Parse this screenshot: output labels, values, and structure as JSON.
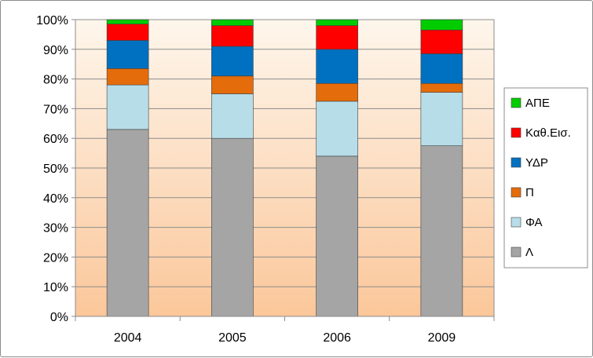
{
  "chart_data": {
    "type": "stacked-bar-100",
    "categories": [
      "2004",
      "2005",
      "2006",
      "2009"
    ],
    "series": [
      {
        "name": "Λ",
        "color": "#a5a5a5",
        "values": [
          63,
          60,
          54,
          57.5
        ]
      },
      {
        "name": "ΦΑ",
        "color": "#b7dde8",
        "values": [
          15,
          15,
          18.5,
          18
        ]
      },
      {
        "name": "Π",
        "color": "#e46c0a",
        "values": [
          5.5,
          6,
          6,
          3
        ]
      },
      {
        "name": "ΥΔΡ",
        "color": "#0070c0",
        "values": [
          9.5,
          10,
          11.5,
          10
        ]
      },
      {
        "name": "Καθ.Εισ.",
        "color": "#ff0000",
        "values": [
          5.5,
          7,
          8,
          8
        ]
      },
      {
        "name": "ΑΠΕ",
        "color": "#00cc00",
        "values": [
          1.5,
          2,
          2,
          3.5
        ]
      }
    ],
    "y_ticks": [
      "0%",
      "10%",
      "20%",
      "30%",
      "40%",
      "50%",
      "60%",
      "70%",
      "80%",
      "90%",
      "100%"
    ],
    "ylim": [
      0,
      100
    ],
    "grid": true,
    "legend_position": "right",
    "plot_background": [
      "#fef6ec",
      "#fbc79a"
    ]
  }
}
